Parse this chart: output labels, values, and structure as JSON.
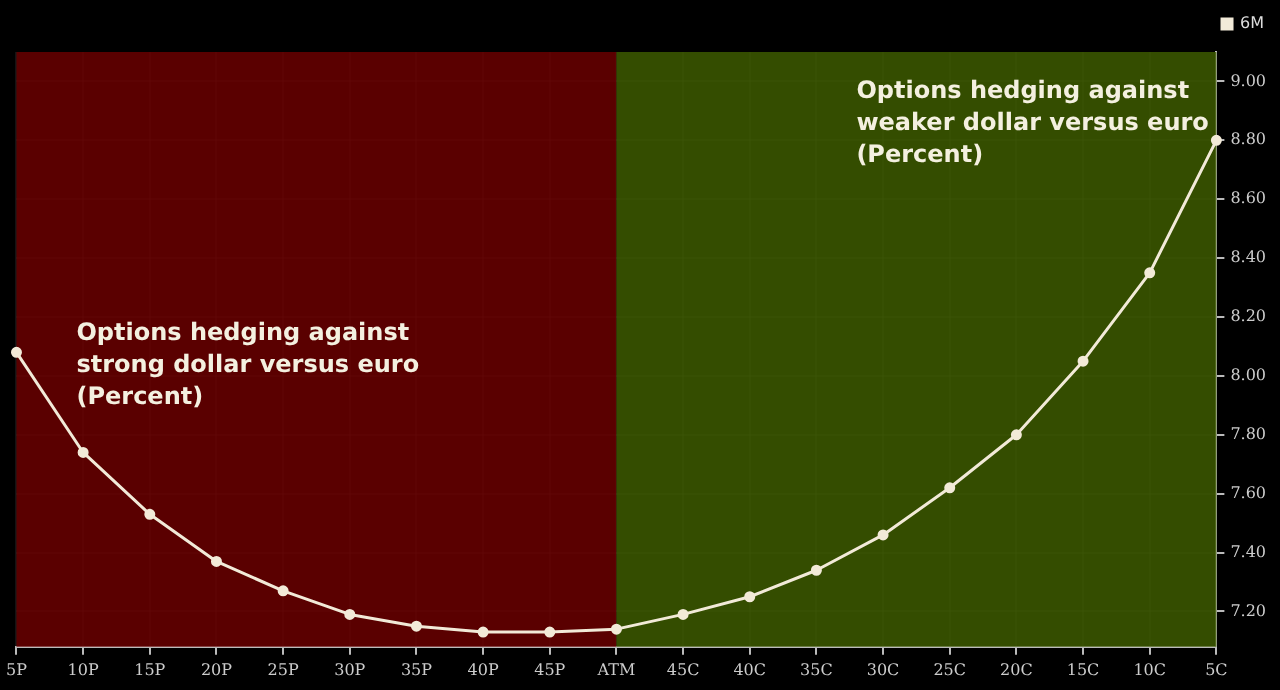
{
  "chart_data": {
    "type": "line",
    "categories": [
      "5P",
      "10P",
      "15P",
      "20P",
      "25P",
      "30P",
      "35P",
      "40P",
      "45P",
      "ATM",
      "45C",
      "40C",
      "35C",
      "30C",
      "25C",
      "20C",
      "15C",
      "10C",
      "5C"
    ],
    "series": [
      {
        "name": "6M",
        "color": "#f2ead8",
        "values": [
          8.08,
          7.74,
          7.53,
          7.37,
          7.27,
          7.19,
          7.15,
          7.13,
          7.13,
          7.14,
          7.19,
          7.25,
          7.34,
          7.46,
          7.62,
          7.8,
          8.05,
          8.35,
          8.8
        ]
      }
    ],
    "ylim": [
      7.08,
      9.1
    ],
    "yticks": [
      {
        "value": 7.2,
        "label": "7.20"
      },
      {
        "value": 7.4,
        "label": "7.40"
      },
      {
        "value": 7.6,
        "label": "7.60"
      },
      {
        "value": 7.8,
        "label": "7.80"
      },
      {
        "value": 8.0,
        "label": "8.00"
      },
      {
        "value": 8.2,
        "label": "8.20"
      },
      {
        "value": 8.4,
        "label": "8.40"
      },
      {
        "value": 8.6,
        "label": "8.60"
      },
      {
        "value": 8.8,
        "label": "8.80"
      },
      {
        "value": 9.0,
        "label": "9.00"
      }
    ],
    "bands": [
      {
        "axis": "x",
        "from": "5P",
        "to": "ATM",
        "color": "#6a0000",
        "label": "Options hedging against\nstrong dollar versus euro\n(Percent)"
      },
      {
        "axis": "x",
        "from": "ATM",
        "to": "5C",
        "color": "#3d5a00",
        "label": "Options hedging against\nweaker dollar versus euro\n(Percent)"
      }
    ],
    "grid": true,
    "legend": "top right",
    "marker": "circle",
    "line_style": "solid"
  }
}
